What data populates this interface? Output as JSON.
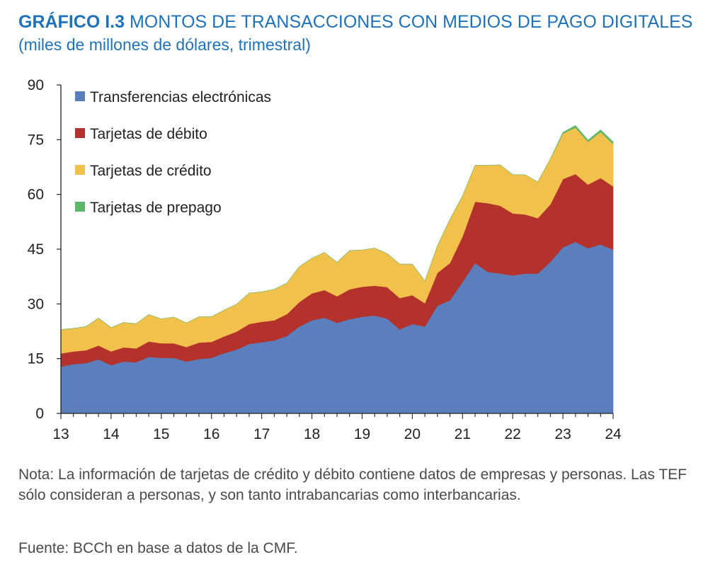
{
  "header": {
    "title_prefix": "GRÁFICO I.3",
    "title": "MONTOS DE TRANSACCIONES CON MEDIOS DE PAGO DIGITALES",
    "subtitle": "(miles de millones de dólares, trimestral)"
  },
  "footer": {
    "note": "Nota: La información de tarjetas de crédito y débito contiene datos de empresas y personas. Las TEF sólo consideran a personas, y son tanto intrabancarias como interbancarias.",
    "source": "Fuente: BCCh en base a datos de la CMF."
  },
  "chart_data": {
    "type": "area",
    "stacked": true,
    "ylim": [
      0,
      90
    ],
    "yticks": [
      0,
      15,
      30,
      45,
      60,
      75,
      90
    ],
    "xlim": [
      2013,
      2024
    ],
    "xticks": [
      2013,
      2014,
      2015,
      2016,
      2017,
      2018,
      2019,
      2020,
      2021,
      2022,
      2023,
      2024
    ],
    "xtick_labels": [
      "13",
      "14",
      "15",
      "16",
      "17",
      "18",
      "19",
      "20",
      "21",
      "22",
      "23",
      "24"
    ],
    "legend_position": "top-left",
    "x": [
      2013,
      2013.25,
      2013.5,
      2013.75,
      2014,
      2014.25,
      2014.5,
      2014.75,
      2015,
      2015.25,
      2015.5,
      2015.75,
      2016,
      2016.25,
      2016.5,
      2016.75,
      2017,
      2017.25,
      2017.5,
      2017.75,
      2018,
      2018.25,
      2018.5,
      2018.75,
      2019,
      2019.25,
      2019.5,
      2019.75,
      2020,
      2020.25,
      2020.5,
      2020.75,
      2021,
      2021.25,
      2021.5,
      2021.75,
      2022,
      2022.25,
      2022.5,
      2022.75,
      2023,
      2023.25,
      2023.5,
      2023.75,
      2024
    ],
    "series": [
      {
        "name": "Transferencias electrónicas",
        "color": "#5b7fbd",
        "values": [
          12.8,
          13.5,
          13.8,
          14.8,
          13.2,
          14.2,
          14.0,
          15.5,
          15.2,
          15.2,
          14.2,
          14.9,
          15.2,
          16.5,
          17.5,
          19.0,
          19.5,
          20.0,
          21.2,
          23.8,
          25.5,
          26.2,
          24.8,
          25.8,
          26.5,
          26.8,
          26.0,
          23.0,
          24.5,
          23.8,
          29.5,
          31.0,
          36.0,
          41.2,
          38.8,
          38.3,
          37.8,
          38.3,
          38.3,
          41.5,
          45.5,
          47.0,
          45.3,
          46.3,
          44.9
        ]
      },
      {
        "name": "Tarjetas de débito",
        "color": "#b3332c",
        "values": [
          3.6,
          3.5,
          3.5,
          3.8,
          3.8,
          3.9,
          3.8,
          4.2,
          4.0,
          4.0,
          4.0,
          4.5,
          4.4,
          4.6,
          4.9,
          5.5,
          5.6,
          5.5,
          6.0,
          6.7,
          7.4,
          7.6,
          7.3,
          8.2,
          8.2,
          8.2,
          8.6,
          8.6,
          7.9,
          6.4,
          9.0,
          10.2,
          12.5,
          16.8,
          18.8,
          18.6,
          17.0,
          16.2,
          15.2,
          15.8,
          18.7,
          18.6,
          17.4,
          18.2,
          17.3
        ]
      },
      {
        "name": "Tarjetas de crédito",
        "color": "#f2c14b",
        "values": [
          6.6,
          6.3,
          6.5,
          7.5,
          6.5,
          6.8,
          6.8,
          7.4,
          6.7,
          7.2,
          6.6,
          7.1,
          6.9,
          7.2,
          7.5,
          8.5,
          8.2,
          8.5,
          8.5,
          9.7,
          9.6,
          10.3,
          9.3,
          10.6,
          10.1,
          10.3,
          9.2,
          9.3,
          8.5,
          6.1,
          7.4,
          12.0,
          11.1,
          10.0,
          10.4,
          11.2,
          10.6,
          10.9,
          9.9,
          12.5,
          12.5,
          12.7,
          11.7,
          12.6,
          11.6
        ]
      },
      {
        "name": "Tarjetas de prepago",
        "color": "#5db86a",
        "values": [
          0,
          0,
          0,
          0,
          0,
          0,
          0,
          0,
          0,
          0,
          0,
          0,
          0,
          0,
          0,
          0,
          0,
          0,
          0,
          0,
          0,
          0,
          0,
          0,
          0,
          0,
          0,
          0,
          0,
          0,
          0,
          0,
          0,
          0,
          0,
          0,
          0,
          0,
          0,
          0,
          0.3,
          0.6,
          0.5,
          0.6,
          0.6
        ]
      }
    ]
  }
}
